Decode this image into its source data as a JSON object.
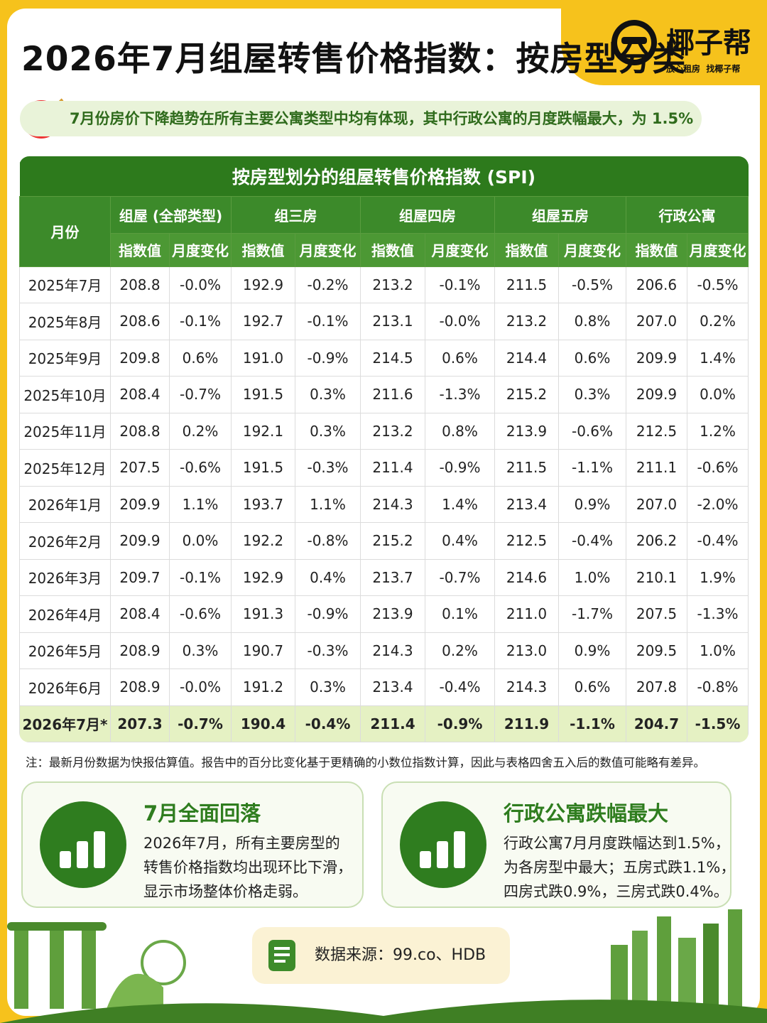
{
  "header": {
    "title": "2026年7月组屋转售价格指数：按房型分类",
    "brand": "椰子帮",
    "slogan": [
      "放心租房",
      "找椰子帮"
    ]
  },
  "highlight": "7月份房价下降趋势在所有主要公寓类型中均有体现，其中行政公寓的月度跌幅最大，为 1.5%",
  "table": {
    "title": "按房型划分的组屋转售价格指数 (SPI)",
    "month_header": "月份",
    "groups": [
      {
        "name": "组屋 (全部类型)",
        "columns": [
          "指数值",
          "月度变化"
        ]
      },
      {
        "name": "组三房",
        "columns": [
          "指数值",
          "月度变化"
        ]
      },
      {
        "name": "组屋四房",
        "columns": [
          "指数值",
          "月度变化"
        ]
      },
      {
        "name": "组屋五房",
        "columns": [
          "指数值",
          "月度变化"
        ]
      },
      {
        "name": "行政公寓",
        "columns": [
          "指数值",
          "月度变化"
        ]
      }
    ],
    "rows": [
      [
        "2025年7月",
        "208.8",
        "-0.0%",
        "192.9",
        "-0.2%",
        "213.2",
        "-0.1%",
        "211.5",
        "-0.5%",
        "206.6",
        "-0.5%"
      ],
      [
        "2025年8月",
        "208.6",
        "-0.1%",
        "192.7",
        "-0.1%",
        "213.1",
        "-0.0%",
        "213.2",
        "0.8%",
        "207.0",
        "0.2%"
      ],
      [
        "2025年9月",
        "209.8",
        "0.6%",
        "191.0",
        "-0.9%",
        "214.5",
        "0.6%",
        "214.4",
        "0.6%",
        "209.9",
        "1.4%"
      ],
      [
        "2025年10月",
        "208.4",
        "-0.7%",
        "191.5",
        "0.3%",
        "211.6",
        "-1.3%",
        "215.2",
        "0.3%",
        "209.9",
        "0.0%"
      ],
      [
        "2025年11月",
        "208.8",
        "0.2%",
        "192.1",
        "0.3%",
        "213.2",
        "0.8%",
        "213.9",
        "-0.6%",
        "212.5",
        "1.2%"
      ],
      [
        "2025年12月",
        "207.5",
        "-0.6%",
        "191.5",
        "-0.3%",
        "211.4",
        "-0.9%",
        "211.5",
        "-1.1%",
        "211.1",
        "-0.6%"
      ],
      [
        "2026年1月",
        "209.9",
        "1.1%",
        "193.7",
        "1.1%",
        "214.3",
        "1.4%",
        "213.4",
        "0.9%",
        "207.0",
        "-2.0%"
      ],
      [
        "2026年2月",
        "209.9",
        "0.0%",
        "192.2",
        "-0.8%",
        "215.2",
        "0.4%",
        "212.5",
        "-0.4%",
        "206.2",
        "-0.4%"
      ],
      [
        "2026年3月",
        "209.7",
        "-0.1%",
        "192.9",
        "0.4%",
        "213.7",
        "-0.7%",
        "214.6",
        "1.0%",
        "210.1",
        "1.9%"
      ],
      [
        "2026年4月",
        "208.4",
        "-0.6%",
        "191.3",
        "-0.9%",
        "213.9",
        "0.1%",
        "211.0",
        "-1.7%",
        "207.5",
        "-1.3%"
      ],
      [
        "2026年5月",
        "208.9",
        "0.3%",
        "190.7",
        "-0.3%",
        "214.3",
        "0.2%",
        "213.0",
        "0.9%",
        "209.5",
        "1.0%"
      ],
      [
        "2026年6月",
        "208.9",
        "-0.0%",
        "191.2",
        "0.3%",
        "213.4",
        "-0.4%",
        "214.3",
        "0.6%",
        "207.8",
        "-0.8%"
      ],
      [
        "2026年7月*",
        "207.3",
        "-0.7%",
        "190.4",
        "-0.4%",
        "211.4",
        "-0.9%",
        "211.9",
        "-1.1%",
        "204.7",
        "-1.5%"
      ]
    ]
  },
  "note": "注：最新月份数据为快报估算值。报告中的百分比变化基于更精确的小数位指数计算，因此与表格四舍五入后的数值可能略有差异。",
  "cards": [
    {
      "title": "7月全面回落",
      "lines": [
        "2026年7月，所有主要房型的",
        "转售价格指数均出现环比下滑，",
        "显示市场整体价格走弱。"
      ]
    },
    {
      "title": "行政公寓跌幅最大",
      "lines": [
        "行政公寓7月月度跌幅达到1.5%，",
        "为各房型中最大；五房式跌1.1%，",
        "四房式跌0.9%，三房式跌0.4%。"
      ]
    }
  ],
  "source": "数据来源：99.co、HDB"
}
